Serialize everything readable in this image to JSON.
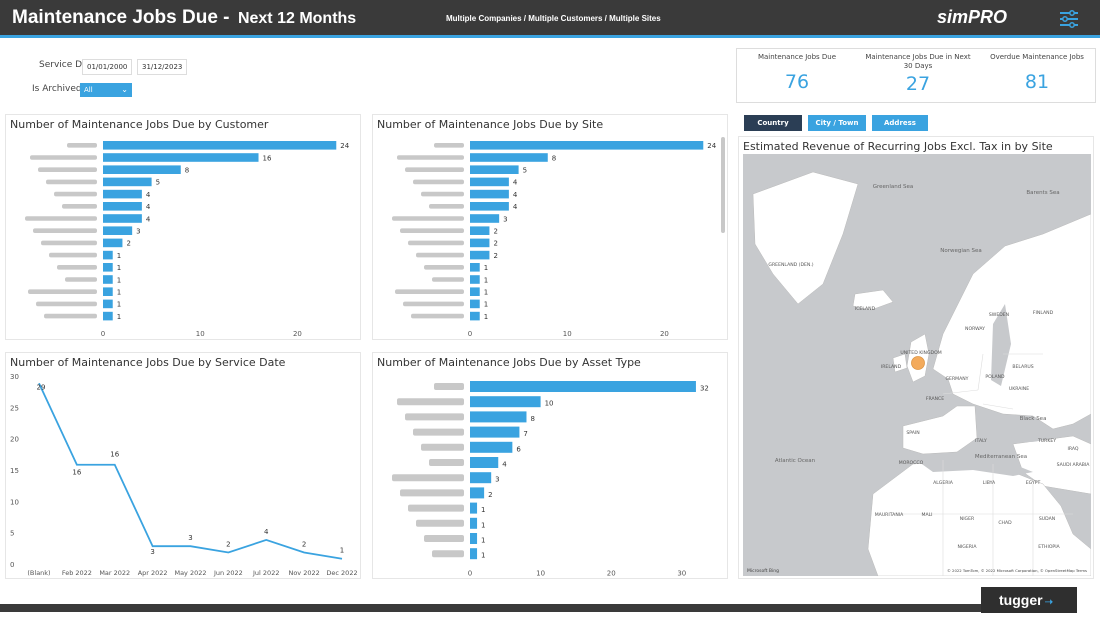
{
  "header": {
    "title": "Maintenance Jobs Due -",
    "subtitle": "Next 12 Months",
    "scope": "Multiple Companies / Multiple Customers / Multiple Sites",
    "logo": "simPRO"
  },
  "filters": {
    "service_date_label": "Service Date",
    "date_from": "01/01/2000",
    "date_to": "31/12/2023",
    "archived_label": "Is Archived",
    "archived_value": "All"
  },
  "kpis": [
    {
      "label": "Maintenance Jobs Due",
      "value": "76"
    },
    {
      "label": "Maintenance Jobs Due in Next 30 Days",
      "value": "27"
    },
    {
      "label": "Overdue Maintenance Jobs",
      "value": "81"
    }
  ],
  "map_buttons": [
    {
      "label": "Country",
      "active": true
    },
    {
      "label": "City / Town",
      "active": false
    },
    {
      "label": "Address",
      "active": false
    }
  ],
  "colors": {
    "accent": "#3aa3e0",
    "header": "#3a3a3a",
    "dark_button": "#2b3e55",
    "bubble": "#f2a14a"
  },
  "icons": {
    "filter": "sliders-icon"
  },
  "footer": {
    "brand": "tugger"
  },
  "chart_data": [
    {
      "type": "bar",
      "title": "Number of Maintenance Jobs Due by Customer",
      "orientation": "horizontal",
      "values": [
        24,
        16,
        8,
        5,
        4,
        4,
        4,
        3,
        2,
        1,
        1,
        1,
        1,
        1,
        1
      ],
      "xlim": [
        0,
        25
      ],
      "xticks": [
        "0",
        "10",
        "20"
      ]
    },
    {
      "type": "bar",
      "title": "Number of Maintenance Jobs Due by Site",
      "orientation": "horizontal",
      "values": [
        24,
        8,
        5,
        4,
        4,
        4,
        3,
        2,
        2,
        2,
        1,
        1,
        1,
        1,
        1
      ],
      "xlim": [
        0,
        25
      ],
      "xticks": [
        "0",
        "10",
        "20"
      ]
    },
    {
      "type": "line",
      "title": "Number of Maintenance Jobs Due by Service Date",
      "categories": [
        "(Blank)",
        "Feb 2022",
        "Mar 2022",
        "Apr 2022",
        "May 2022",
        "Jun 2022",
        "Jul 2022",
        "Nov 2022",
        "Dec 2022"
      ],
      "values": [
        29,
        16,
        16,
        3,
        3,
        2,
        4,
        2,
        1
      ],
      "ylim": [
        0,
        30
      ],
      "yticks": [
        "0",
        "5",
        "10",
        "15",
        "20",
        "25",
        "30"
      ]
    },
    {
      "type": "bar",
      "title": "Number of Maintenance Jobs Due by Asset Type",
      "orientation": "horizontal",
      "values": [
        32,
        10,
        8,
        7,
        6,
        4,
        3,
        2,
        1,
        1,
        1,
        1
      ],
      "xlim": [
        0,
        33
      ],
      "xticks": [
        "0",
        "10",
        "20",
        "30"
      ]
    }
  ],
  "map": {
    "title": "Estimated Revenue of Recurring Jobs Excl. Tax in by Site",
    "labels": [
      "Greenland Sea",
      "Barents Sea",
      "Norwegian Sea",
      "GREENLAND (DEN.)",
      "ICELAND",
      "SWEDEN",
      "FINLAND",
      "NORWAY",
      "UNITED KINGDOM",
      "IRELAND",
      "GERMANY",
      "POLAND",
      "BELARUS",
      "UKRAINE",
      "FRANCE",
      "Black Sea",
      "SPAIN",
      "ITALY",
      "TURKEY",
      "Mediterranean Sea",
      "MOROCCO",
      "ALGERIA",
      "LIBYA",
      "EGYPT",
      "Atlantic Ocean",
      "MAURITANIA",
      "MALI",
      "NIGER",
      "CHAD",
      "SUDAN",
      "NIGERIA",
      "ETHIOPIA",
      "SAUDI ARABIA",
      "IRAQ"
    ],
    "credit_left": "Microsoft Bing",
    "credit_right": "© 2022 TomTom, © 2022 Microsoft Corporation, © OpenStreetMap Terms"
  }
}
